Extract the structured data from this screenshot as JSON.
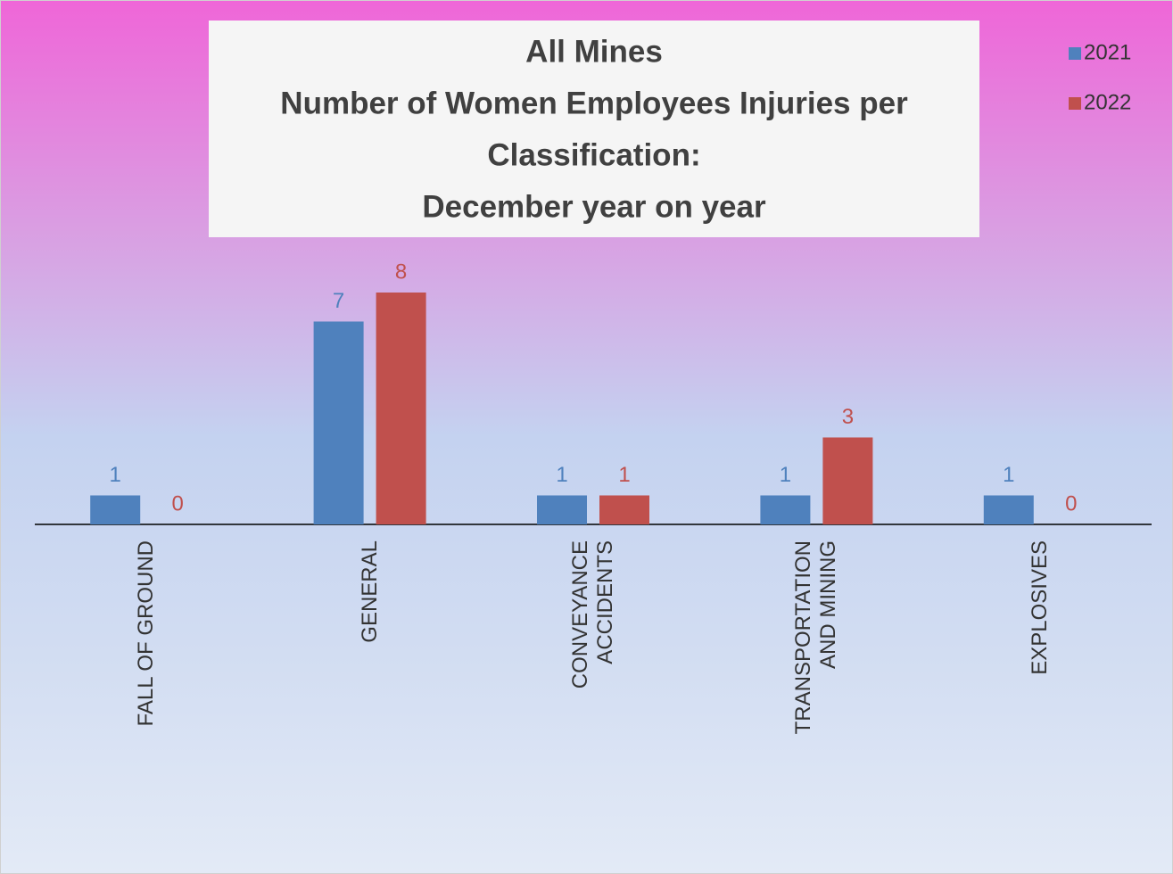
{
  "chart_data": {
    "type": "bar",
    "title": [
      "All Mines",
      "Number of Women Employees Injuries per",
      "Classification:",
      "December year on year"
    ],
    "categories": [
      "FALL OF GROUND",
      "GENERAL",
      "CONVEYANCE\nACCIDENTS",
      "TRANSPORTATION\nAND MINING",
      "EXPLOSIVES"
    ],
    "series": [
      {
        "name": "2021",
        "color": "#4f81bd",
        "values": [
          1,
          7,
          1,
          1,
          1
        ]
      },
      {
        "name": "2022",
        "color": "#c0504d",
        "values": [
          0,
          8,
          1,
          3,
          0
        ]
      }
    ],
    "legend": "top-right"
  }
}
